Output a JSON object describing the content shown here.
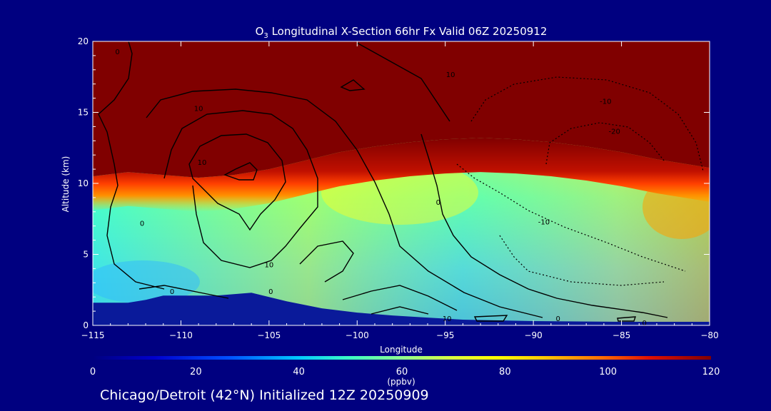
{
  "title_main": "O",
  "title_sub": "3",
  "title_rest": " Longitudinal X-Section 66hr  Fx Valid 06Z 20250912",
  "footer": "Chicago/Detroit (42°N) Initialized 12Z 20250909",
  "colors": {
    "background": "#000080",
    "terrain": "#0a1a9a",
    "high_ozone": "#800000"
  },
  "chart_data": {
    "type": "heatmap",
    "title": "O3 Longitudinal X-Section 66hr  Fx Valid 06Z 20250912",
    "xlabel": "Longitude",
    "ylabel": "Altitude (km)",
    "xlim": [
      -115,
      -80
    ],
    "ylim": [
      0,
      20
    ],
    "xticks": [
      -115,
      -110,
      -105,
      -100,
      -95,
      -90,
      -85,
      -80
    ],
    "xtick_labels": [
      "-115",
      "-110",
      "-105",
      "-100",
      "-95",
      "-90",
      "-85",
      "-80"
    ],
    "yticks": [
      0,
      5,
      10,
      15,
      20
    ],
    "ytick_labels": [
      "0",
      "5",
      "10",
      "15",
      "20"
    ],
    "colorbar": {
      "label": "(ppbv)",
      "range": [
        0,
        120
      ],
      "ticks": [
        0,
        20,
        40,
        60,
        80,
        100,
        120
      ],
      "tick_labels": [
        "0",
        "20",
        "40",
        "60",
        "80",
        "100",
        "120"
      ]
    },
    "tropopause_km": [
      [
        -115,
        10.5
      ],
      [
        -113,
        10.8
      ],
      [
        -111,
        10.6
      ],
      [
        -109,
        10.4
      ],
      [
        -107,
        10.6
      ],
      [
        -105,
        11.0
      ],
      [
        -103,
        11.6
      ],
      [
        -101,
        12.2
      ],
      [
        -99,
        12.6
      ],
      [
        -97,
        12.9
      ],
      [
        -95,
        13.1
      ],
      [
        -93,
        13.2
      ],
      [
        -91,
        13.1
      ],
      [
        -89,
        12.9
      ],
      [
        -87,
        12.6
      ],
      [
        -85,
        12.2
      ],
      [
        -83,
        11.7
      ],
      [
        -81,
        11.3
      ],
      [
        -80,
        11.1
      ]
    ],
    "terrain_km": [
      [
        -115,
        1.6
      ],
      [
        -113,
        1.6
      ],
      [
        -112,
        1.8
      ],
      [
        -111,
        2.1
      ],
      [
        -110,
        2.1
      ],
      [
        -108,
        2.1
      ],
      [
        -106,
        2.3
      ],
      [
        -104,
        1.7
      ],
      [
        -102,
        1.2
      ],
      [
        -100,
        0.9
      ],
      [
        -98,
        0.7
      ],
      [
        -96,
        0.55
      ],
      [
        -94,
        0.4
      ],
      [
        -92,
        0.35
      ],
      [
        -90,
        0.3
      ],
      [
        -85,
        0.25
      ],
      [
        -80,
        0.25
      ]
    ],
    "contour_labels": [
      {
        "lon": -112.2,
        "alt": 7.0,
        "text": "0"
      },
      {
        "lon": -108.8,
        "alt": 11.3,
        "text": "10"
      },
      {
        "lon": -109.0,
        "alt": 15.1,
        "text": "10"
      },
      {
        "lon": -105.0,
        "alt": 4.1,
        "text": "10"
      },
      {
        "lon": -110.5,
        "alt": 2.2,
        "text": "0"
      },
      {
        "lon": -104.9,
        "alt": 2.2,
        "text": "0"
      },
      {
        "lon": -95.4,
        "alt": 8.5,
        "text": "0"
      },
      {
        "lon": -94.7,
        "alt": 17.5,
        "text": "10"
      },
      {
        "lon": -85.9,
        "alt": 15.6,
        "text": "-10"
      },
      {
        "lon": -85.4,
        "alt": 13.5,
        "text": "-20"
      },
      {
        "lon": -89.4,
        "alt": 7.1,
        "text": "-10"
      },
      {
        "lon": -94.9,
        "alt": 0.3,
        "text": "10"
      },
      {
        "lon": -88.6,
        "alt": 0.3,
        "text": "0"
      },
      {
        "lon": -83.7,
        "alt": 0.0,
        "text": "0"
      },
      {
        "lon": -113.6,
        "alt": 19.1,
        "text": "0"
      }
    ]
  }
}
